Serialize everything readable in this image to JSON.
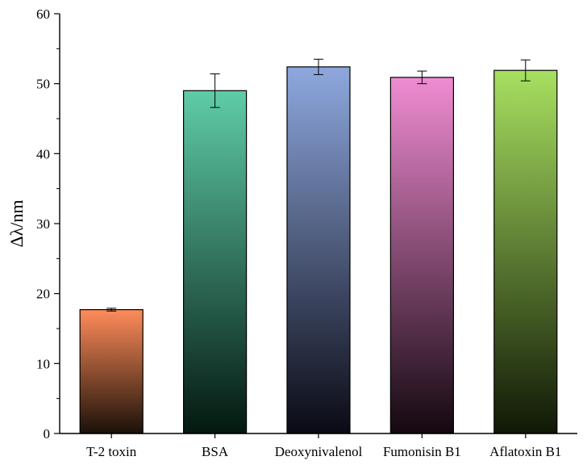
{
  "chart_data": {
    "type": "bar",
    "title": "",
    "xlabel": "",
    "ylabel": "Δλ/nm",
    "ylim": [
      0,
      60
    ],
    "yticks": [
      0,
      10,
      20,
      30,
      40,
      50,
      60
    ],
    "ytick_labels": [
      "0",
      "10",
      "20",
      "30",
      "40",
      "50",
      "60"
    ],
    "grid": false,
    "categories": [
      "T-2 toxin",
      "BSA",
      "Deoxynivalenol",
      "Fumonisin B1",
      "Aflatoxin B1"
    ],
    "values": [
      17.7,
      49.0,
      52.4,
      50.9,
      51.9
    ],
    "errors": [
      0.2,
      2.4,
      1.1,
      0.9,
      1.5
    ],
    "colors_top": [
      "#ff8c5a",
      "#5fcca8",
      "#8ea8de",
      "#f08cd2",
      "#a8e060"
    ],
    "colors_bottom": [
      "#1a1008",
      "#041810",
      "#0a0a14",
      "#140810",
      "#101806"
    ]
  }
}
